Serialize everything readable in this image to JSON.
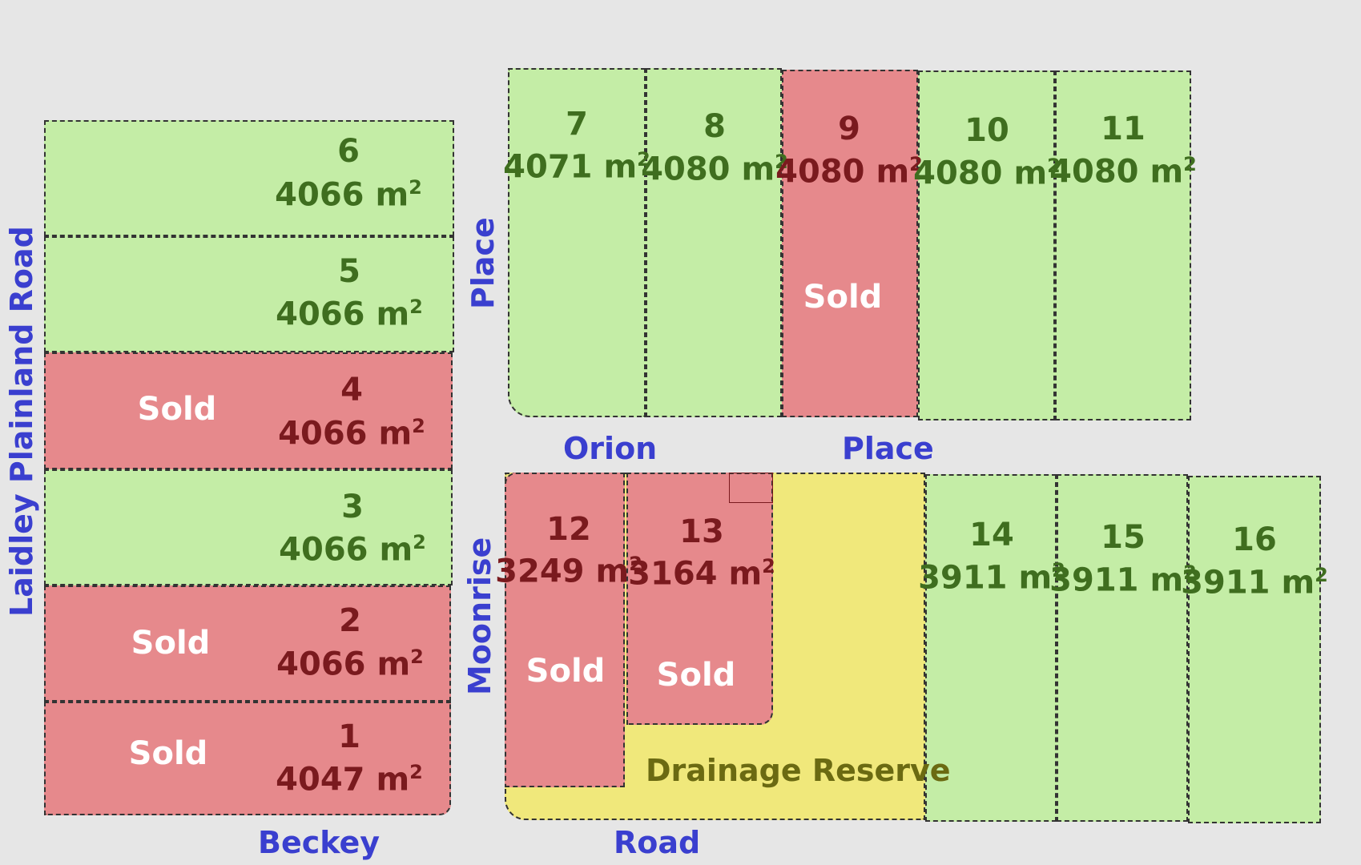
{
  "unit_suffix": "m",
  "unit_power": "2",
  "sold_label": "Sold",
  "roads": {
    "laidley": "Laidley Plainland Road",
    "beckey": "Beckey",
    "place_vertical": "Place",
    "orion": "Orion",
    "place_bottom": "Place",
    "moonrise": "Moonrise",
    "road": "Road"
  },
  "reserve_label": "Drainage Reserve",
  "colors": {
    "available": "#c4eda6",
    "sold": "#e6898c",
    "reserve": "#f0e87b",
    "road_label": "#3a3fcf"
  },
  "lots": [
    {
      "number": "1",
      "area": "4047",
      "status": "sold"
    },
    {
      "number": "2",
      "area": "4066",
      "status": "sold"
    },
    {
      "number": "3",
      "area": "4066",
      "status": "available"
    },
    {
      "number": "4",
      "area": "4066",
      "status": "sold"
    },
    {
      "number": "5",
      "area": "4066",
      "status": "available"
    },
    {
      "number": "6",
      "area": "4066",
      "status": "available"
    },
    {
      "number": "7",
      "area": "4071",
      "status": "available"
    },
    {
      "number": "8",
      "area": "4080",
      "status": "available"
    },
    {
      "number": "9",
      "area": "4080",
      "status": "sold"
    },
    {
      "number": "10",
      "area": "4080",
      "status": "available"
    },
    {
      "number": "11",
      "area": "4080",
      "status": "available"
    },
    {
      "number": "12",
      "area": "3249",
      "status": "sold"
    },
    {
      "number": "13",
      "area": "3164",
      "status": "sold"
    },
    {
      "number": "14",
      "area": "3911",
      "status": "available"
    },
    {
      "number": "15",
      "area": "3911",
      "status": "available"
    },
    {
      "number": "16",
      "area": "3911",
      "status": "available"
    }
  ]
}
